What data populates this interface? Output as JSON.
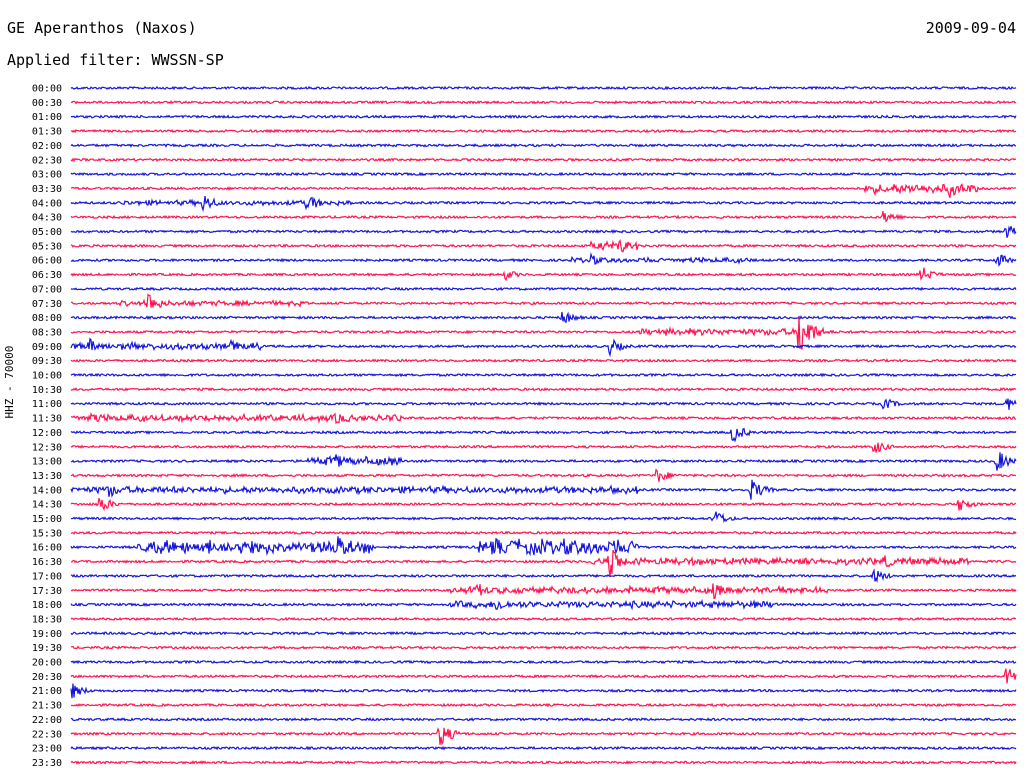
{
  "header": {
    "station": "GE Aperanthos (Naxos)",
    "date": "2009-09-04",
    "filter": "Applied filter: WWSSN-SP"
  },
  "channel_label": "HHZ - 70000",
  "colors": {
    "odd": "#1414dc",
    "even": "#ff1450"
  },
  "chart_data": {
    "type": "line",
    "title": "",
    "xlabel": "",
    "ylabel": "HHZ - 70000",
    "grid": false,
    "legend": "none",
    "y_tick_labels": [
      "00:00",
      "00:30",
      "01:00",
      "01:30",
      "02:00",
      "02:30",
      "03:00",
      "03:30",
      "04:00",
      "04:30",
      "05:00",
      "05:30",
      "06:00",
      "06:30",
      "07:00",
      "07:30",
      "08:00",
      "08:30",
      "09:00",
      "09:30",
      "10:00",
      "10:30",
      "11:00",
      "11:30",
      "12:00",
      "12:30",
      "13:00",
      "13:30",
      "14:00",
      "14:30",
      "15:00",
      "15:30",
      "16:00",
      "16:30",
      "17:00",
      "17:30",
      "18:00",
      "18:30",
      "19:00",
      "19:30",
      "20:00",
      "20:30",
      "21:00",
      "21:30",
      "22:00",
      "22:30",
      "23:00",
      "23:30"
    ],
    "traces_note": "48 stacked 30-minute seismogram traces alternating blue/red",
    "events": [
      {
        "row": 7,
        "pos": 0.93,
        "amp": 10
      },
      {
        "row": 8,
        "pos": 0.14,
        "amp": 10
      },
      {
        "row": 8,
        "pos": 0.25,
        "amp": 10
      },
      {
        "row": 9,
        "pos": 0.86,
        "amp": 8
      },
      {
        "row": 10,
        "pos": 0.99,
        "amp": 8
      },
      {
        "row": 11,
        "pos": 0.58,
        "amp": 9
      },
      {
        "row": 12,
        "pos": 0.55,
        "amp": 6
      },
      {
        "row": 12,
        "pos": 0.98,
        "amp": 8
      },
      {
        "row": 13,
        "pos": 0.46,
        "amp": 6
      },
      {
        "row": 13,
        "pos": 0.9,
        "amp": 9
      },
      {
        "row": 15,
        "pos": 0.08,
        "amp": 14
      },
      {
        "row": 16,
        "pos": 0.52,
        "amp": 8
      },
      {
        "row": 17,
        "pos": 0.77,
        "amp": 30
      },
      {
        "row": 18,
        "pos": 0.02,
        "amp": 8
      },
      {
        "row": 18,
        "pos": 0.17,
        "amp": 8
      },
      {
        "row": 18,
        "pos": 0.57,
        "amp": 9
      },
      {
        "row": 22,
        "pos": 0.86,
        "amp": 7
      },
      {
        "row": 22,
        "pos": 0.99,
        "amp": 8
      },
      {
        "row": 23,
        "pos": 0.02,
        "amp": 7
      },
      {
        "row": 23,
        "pos": 0.28,
        "amp": 7
      },
      {
        "row": 24,
        "pos": 0.7,
        "amp": 11
      },
      {
        "row": 25,
        "pos": 0.85,
        "amp": 8
      },
      {
        "row": 26,
        "pos": 0.28,
        "amp": 9
      },
      {
        "row": 26,
        "pos": 0.98,
        "amp": 12
      },
      {
        "row": 27,
        "pos": 0.62,
        "amp": 9
      },
      {
        "row": 28,
        "pos": 0.04,
        "amp": 9
      },
      {
        "row": 28,
        "pos": 0.72,
        "amp": 12
      },
      {
        "row": 29,
        "pos": 0.03,
        "amp": 10
      },
      {
        "row": 29,
        "pos": 0.94,
        "amp": 8
      },
      {
        "row": 30,
        "pos": 0.68,
        "amp": 10
      },
      {
        "row": 32,
        "pos": 0.28,
        "amp": 14
      },
      {
        "row": 32,
        "pos": 0.45,
        "amp": 10
      },
      {
        "row": 33,
        "pos": 0.57,
        "amp": 16
      },
      {
        "row": 33,
        "pos": 0.86,
        "amp": 8
      },
      {
        "row": 34,
        "pos": 0.85,
        "amp": 8
      },
      {
        "row": 35,
        "pos": 0.43,
        "amp": 8
      },
      {
        "row": 35,
        "pos": 0.68,
        "amp": 9
      },
      {
        "row": 36,
        "pos": 0.45,
        "amp": 8
      },
      {
        "row": 42,
        "pos": 0.0,
        "amp": 9
      },
      {
        "row": 41,
        "pos": 0.99,
        "amp": 10
      },
      {
        "row": 45,
        "pos": 0.39,
        "amp": 14
      }
    ],
    "bursts": [
      {
        "row": 7,
        "from": 0.84,
        "to": 0.96,
        "amp": 6
      },
      {
        "row": 8,
        "from": 0.05,
        "to": 0.3,
        "amp": 3
      },
      {
        "row": 11,
        "from": 0.55,
        "to": 0.6,
        "amp": 5
      },
      {
        "row": 12,
        "from": 0.53,
        "to": 0.72,
        "amp": 3
      },
      {
        "row": 15,
        "from": 0.05,
        "to": 0.25,
        "amp": 3
      },
      {
        "row": 17,
        "from": 0.6,
        "to": 0.8,
        "amp": 4
      },
      {
        "row": 18,
        "from": 0.0,
        "to": 0.2,
        "amp": 4
      },
      {
        "row": 23,
        "from": 0.0,
        "to": 0.35,
        "amp": 4
      },
      {
        "row": 26,
        "from": 0.25,
        "to": 0.35,
        "amp": 5
      },
      {
        "row": 28,
        "from": 0.0,
        "to": 0.6,
        "amp": 4
      },
      {
        "row": 32,
        "from": 0.07,
        "to": 0.32,
        "amp": 8
      },
      {
        "row": 32,
        "from": 0.43,
        "to": 0.6,
        "amp": 9
      },
      {
        "row": 33,
        "from": 0.55,
        "to": 0.95,
        "amp": 4
      },
      {
        "row": 35,
        "from": 0.4,
        "to": 0.8,
        "amp": 4
      },
      {
        "row": 36,
        "from": 0.4,
        "to": 0.75,
        "amp": 4
      }
    ]
  }
}
